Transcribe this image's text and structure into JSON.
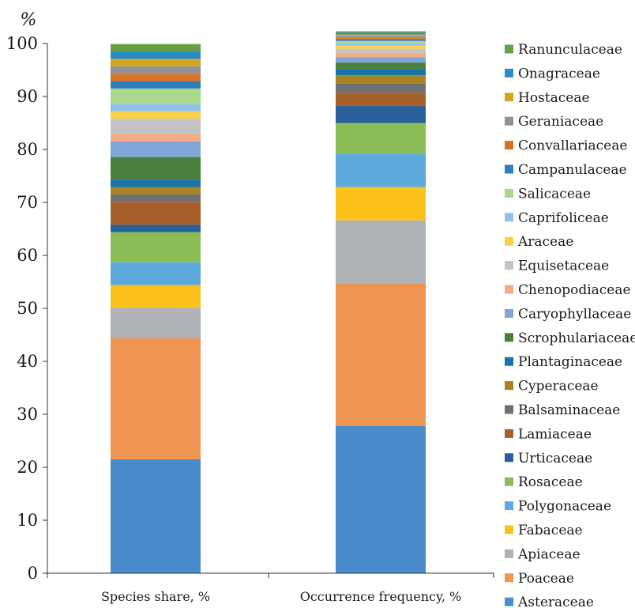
{
  "chart_data": {
    "type": "bar",
    "stacked": true,
    "unit_label": "%",
    "categories": [
      "Species share, %",
      "Occurrence frequency, %"
    ],
    "ylim": [
      0,
      100
    ],
    "yticks": [
      0,
      10,
      20,
      30,
      40,
      50,
      60,
      70,
      80,
      90,
      100
    ],
    "legend_position": "right",
    "series": [
      {
        "name": "Asteraceae",
        "color": "#4a8bc9",
        "values": [
          21.5,
          27.8
        ]
      },
      {
        "name": "Poaceae",
        "color": "#ee9651",
        "values": [
          22.9,
          26.9
        ]
      },
      {
        "name": "Apiaceae",
        "color": "#aeb1b6",
        "values": [
          5.7,
          11.9
        ]
      },
      {
        "name": "Fabaceae",
        "color": "#fcc21c",
        "values": [
          4.3,
          6.3
        ]
      },
      {
        "name": "Polygonaceae",
        "color": "#5ea9db",
        "values": [
          4.3,
          6.3
        ]
      },
      {
        "name": "Rosaceae",
        "color": "#8bbd57",
        "values": [
          5.7,
          5.8
        ]
      },
      {
        "name": "Urticaceae",
        "color": "#27609b",
        "values": [
          1.4,
          3.2
        ]
      },
      {
        "name": "Lamiaceae",
        "color": "#a8602a",
        "values": [
          4.3,
          2.5
        ]
      },
      {
        "name": "Balsaminaceae",
        "color": "#6e7072",
        "values": [
          1.4,
          1.8
        ]
      },
      {
        "name": "Cyperaceae",
        "color": "#a68424",
        "values": [
          1.4,
          1.5
        ]
      },
      {
        "name": "Plantaginaceae",
        "color": "#1a73a8",
        "values": [
          1.4,
          1.2
        ]
      },
      {
        "name": "Scrophulariaceae",
        "color": "#4b7f3d",
        "values": [
          4.3,
          1.2
        ]
      },
      {
        "name": "Caryophyllaceae",
        "color": "#7fa6d8",
        "values": [
          2.9,
          1.0
        ]
      },
      {
        "name": "Chenopodiaceae",
        "color": "#f6ab84",
        "values": [
          1.4,
          0.8
        ]
      },
      {
        "name": "Equisetaceae",
        "color": "#c4c4c6",
        "values": [
          2.9,
          0.8
        ]
      },
      {
        "name": "Araceae",
        "color": "#f9cf4c",
        "values": [
          1.4,
          0.6
        ]
      },
      {
        "name": "Caprifoliceae",
        "color": "#91c1e8",
        "values": [
          1.4,
          0.5
        ]
      },
      {
        "name": "Salicaceae",
        "color": "#a7d88c",
        "values": [
          2.9,
          0.4
        ]
      },
      {
        "name": "Campanulaceae",
        "color": "#2f7dbd",
        "values": [
          1.4,
          0.3
        ]
      },
      {
        "name": "Convallariaceae",
        "color": "#d77325",
        "values": [
          1.4,
          0.3
        ]
      },
      {
        "name": "Geraniaceae",
        "color": "#8e9196",
        "values": [
          1.4,
          0.3
        ]
      },
      {
        "name": "Hostaceae",
        "color": "#d2a523",
        "values": [
          1.4,
          0.3
        ]
      },
      {
        "name": "Onagraceae",
        "color": "#2b8dc8",
        "values": [
          1.4,
          0.3
        ]
      },
      {
        "name": "Ranunculaceae",
        "color": "#669f48",
        "values": [
          1.4,
          0.3
        ]
      }
    ]
  }
}
